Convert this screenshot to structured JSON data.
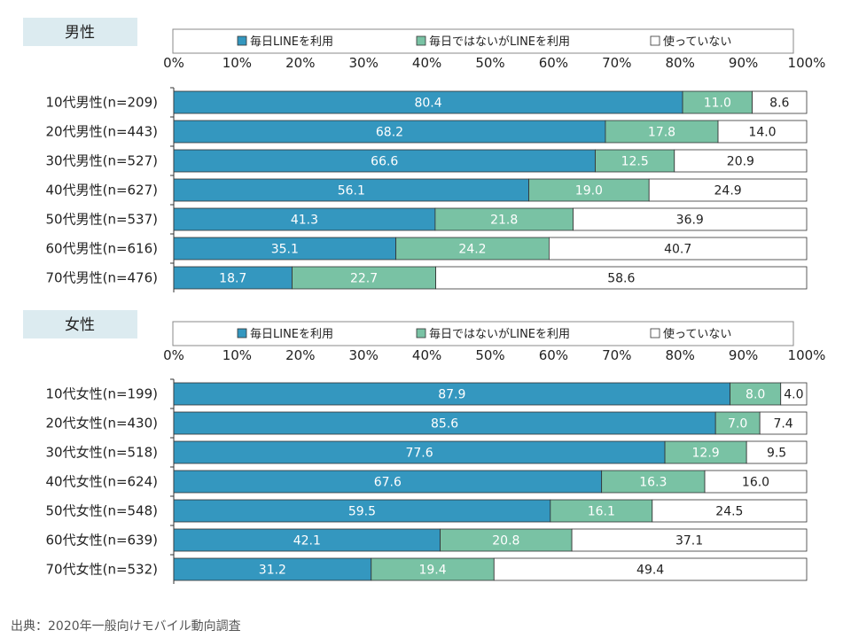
{
  "source": "出典：2020年一般向けモバイル動向調査",
  "colors": {
    "daily": "#3497bf",
    "not_daily": "#79c2a4",
    "not_using": "#ffffff",
    "title_bg": "#dcebf0",
    "border": "#333333"
  },
  "legend": {
    "items": [
      "毎日LINEを利用",
      "毎日ではないがLINEを利用",
      "使っていない"
    ]
  },
  "chart_data": [
    {
      "type": "bar",
      "orientation": "horizontal",
      "stacked": true,
      "title": "男性",
      "xlim": [
        0,
        100
      ],
      "x_ticks": [
        "0%",
        "10%",
        "20%",
        "30%",
        "40%",
        "50%",
        "60%",
        "70%",
        "80%",
        "90%",
        "100%"
      ],
      "categories": [
        "10代男性(n=209)",
        "20代男性(n=443)",
        "30代男性(n=527)",
        "40代男性(n=627)",
        "50代男性(n=537)",
        "60代男性(n=616)",
        "70代男性(n=476)"
      ],
      "series": [
        {
          "name": "毎日LINEを利用",
          "values": [
            80.4,
            68.2,
            66.6,
            56.1,
            41.3,
            35.1,
            18.7
          ]
        },
        {
          "name": "毎日ではないがLINEを利用",
          "values": [
            11.0,
            17.8,
            12.5,
            19.0,
            21.8,
            24.2,
            22.7
          ]
        },
        {
          "name": "使っていない",
          "values": [
            8.6,
            14.0,
            20.9,
            24.9,
            36.9,
            40.7,
            58.6
          ]
        }
      ]
    },
    {
      "type": "bar",
      "orientation": "horizontal",
      "stacked": true,
      "title": "女性",
      "xlim": [
        0,
        100
      ],
      "x_ticks": [
        "0%",
        "10%",
        "20%",
        "30%",
        "40%",
        "50%",
        "60%",
        "70%",
        "80%",
        "90%",
        "100%"
      ],
      "categories": [
        "10代女性(n=199)",
        "20代女性(n=430)",
        "30代女性(n=518)",
        "40代女性(n=624)",
        "50代女性(n=548)",
        "60代女性(n=639)",
        "70代女性(n=532)"
      ],
      "series": [
        {
          "name": "毎日LINEを利用",
          "values": [
            87.9,
            85.6,
            77.6,
            67.6,
            59.5,
            42.1,
            31.2
          ]
        },
        {
          "name": "毎日ではないがLINEを利用",
          "values": [
            8.0,
            7.0,
            12.9,
            16.3,
            16.1,
            20.8,
            19.4
          ]
        },
        {
          "name": "使っていない",
          "values": [
            4.0,
            7.4,
            9.5,
            16.0,
            24.5,
            37.1,
            49.4
          ]
        }
      ]
    }
  ]
}
